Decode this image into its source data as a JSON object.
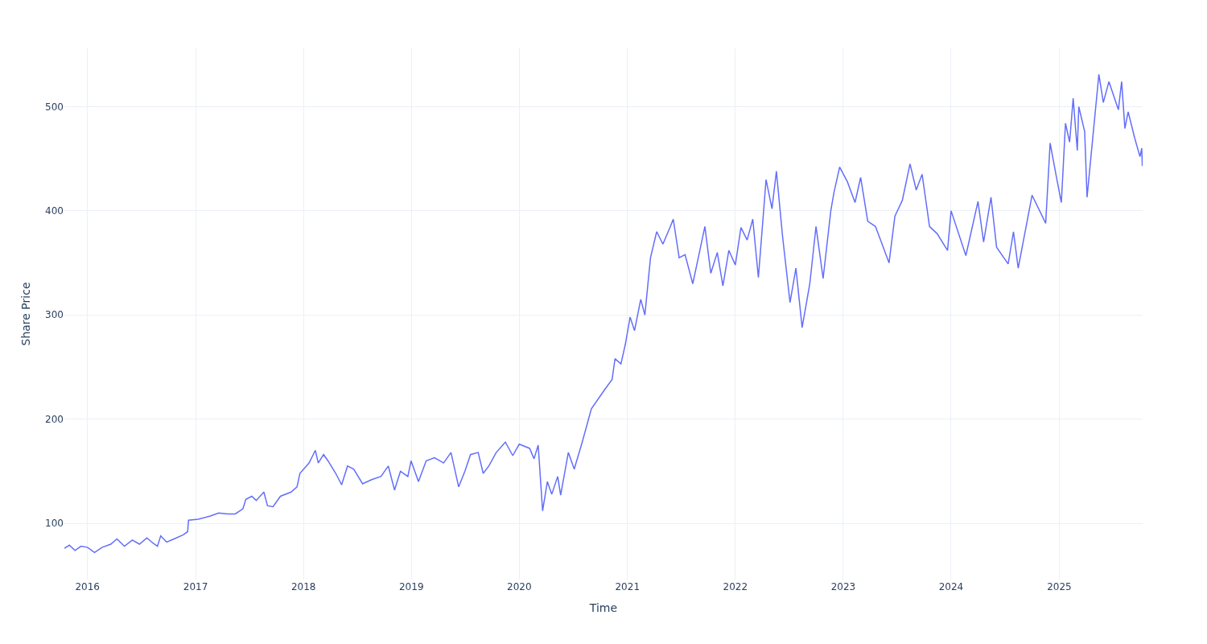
{
  "chart_data": {
    "type": "line",
    "xlabel": "Time",
    "ylabel": "Share Price",
    "x": [
      "2015-10-15",
      "2015-11-01",
      "2015-11-20",
      "2015-12-10",
      "2016-01-01",
      "2016-01-25",
      "2016-02-20",
      "2016-03-20",
      "2016-04-10",
      "2016-05-05",
      "2016-06-01",
      "2016-06-25",
      "2016-07-20",
      "2016-08-10",
      "2016-08-25",
      "2016-09-05",
      "2016-09-25",
      "2016-10-20",
      "2016-11-20",
      "2016-12-05",
      "2016-12-08",
      "2017-01-10",
      "2017-02-20",
      "2017-03-20",
      "2017-04-20",
      "2017-05-15",
      "2017-06-10",
      "2017-06-20",
      "2017-07-10",
      "2017-07-25",
      "2017-08-20",
      "2017-09-01",
      "2017-09-20",
      "2017-10-15",
      "2017-11-20",
      "2017-12-10",
      "2017-12-20",
      "2018-01-20",
      "2018-02-10",
      "2018-02-20",
      "2018-03-10",
      "2018-03-25",
      "2018-04-20",
      "2018-05-10",
      "2018-05-30",
      "2018-06-20",
      "2018-07-20",
      "2018-08-20",
      "2018-09-20",
      "2018-10-15",
      "2018-11-05",
      "2018-11-25",
      "2018-12-20",
      "2018-12-31",
      "2019-01-25",
      "2019-02-20",
      "2019-03-20",
      "2019-04-20",
      "2019-05-15",
      "2019-06-10",
      "2019-07-01",
      "2019-07-20",
      "2019-08-15",
      "2019-09-01",
      "2019-09-20",
      "2019-10-15",
      "2019-11-15",
      "2019-12-10",
      "2020-01-01",
      "2020-02-05",
      "2020-02-20",
      "2020-03-05",
      "2020-03-20",
      "2020-04-05",
      "2020-04-20",
      "2020-05-10",
      "2020-05-20",
      "2020-06-15",
      "2020-07-05",
      "2020-08-01",
      "2020-09-01",
      "2020-10-15",
      "2020-11-10",
      "2020-11-20",
      "2020-12-10",
      "2020-12-25",
      "2021-01-10",
      "2021-01-25",
      "2021-02-15",
      "2021-03-01",
      "2021-03-20",
      "2021-04-10",
      "2021-05-01",
      "2021-05-25",
      "2021-06-05",
      "2021-06-25",
      "2021-07-15",
      "2021-08-10",
      "2021-08-25",
      "2021-09-20",
      "2021-10-10",
      "2021-11-01",
      "2021-11-20",
      "2021-12-10",
      "2022-01-01",
      "2022-01-20",
      "2022-02-10",
      "2022-03-01",
      "2022-03-20",
      "2022-04-15",
      "2022-05-05",
      "2022-05-20",
      "2022-06-10",
      "2022-07-05",
      "2022-07-25",
      "2022-08-15",
      "2022-09-10",
      "2022-10-01",
      "2022-10-25",
      "2022-11-20",
      "2022-12-01",
      "2022-12-20",
      "2023-01-15",
      "2023-02-10",
      "2023-03-01",
      "2023-03-25",
      "2023-04-20",
      "2023-05-10",
      "2023-06-05",
      "2023-06-25",
      "2023-07-20",
      "2023-08-15",
      "2023-09-05",
      "2023-09-25",
      "2023-10-20",
      "2023-11-15",
      "2023-12-20",
      "2024-01-01",
      "2024-02-20",
      "2024-04-01",
      "2024-04-20",
      "2024-05-15",
      "2024-06-03",
      "2024-07-12",
      "2024-07-30",
      "2024-08-15",
      "2024-10-01",
      "2024-11-16",
      "2024-12-01",
      "2024-12-24",
      "2025-01-08",
      "2025-01-22",
      "2025-02-05",
      "2025-02-17",
      "2025-03-03",
      "2025-03-08",
      "2025-03-28",
      "2025-04-05",
      "2025-04-28",
      "2025-05-15",
      "2025-05-30",
      "2025-06-18",
      "2025-07-20",
      "2025-07-31",
      "2025-08-11",
      "2025-08-22",
      "2025-09-13",
      "2025-10-01",
      "2025-10-07",
      "2025-10-09"
    ],
    "values": [
      76,
      79,
      74,
      78,
      77,
      72,
      77,
      80,
      85,
      78,
      84,
      80,
      86,
      81,
      78,
      88,
      82,
      85,
      89,
      92,
      103,
      104,
      107,
      110,
      109,
      109,
      114,
      123,
      126,
      122,
      130,
      117,
      116,
      126,
      130,
      135,
      148,
      158,
      170,
      158,
      166,
      160,
      148,
      137,
      155,
      152,
      138,
      142,
      145,
      155,
      132,
      150,
      145,
      160,
      140,
      160,
      163,
      158,
      168,
      135,
      150,
      166,
      168,
      148,
      155,
      168,
      178,
      165,
      176,
      172,
      162,
      175,
      112,
      140,
      128,
      145,
      127,
      168,
      152,
      178,
      210,
      228,
      238,
      258,
      253,
      272,
      298,
      285,
      315,
      300,
      355,
      380,
      368,
      384,
      392,
      355,
      358,
      330,
      350,
      385,
      340,
      360,
      328,
      362,
      348,
      384,
      372,
      392,
      336,
      430,
      402,
      438,
      375,
      312,
      345,
      288,
      330,
      385,
      335,
      400,
      418,
      442,
      428,
      408,
      432,
      390,
      385,
      370,
      350,
      395,
      410,
      445,
      420,
      435,
      385,
      378,
      362,
      400,
      357,
      409,
      370,
      413,
      365,
      349,
      380,
      345,
      415,
      388,
      465,
      430,
      408,
      484,
      466,
      508,
      458,
      500,
      476,
      413,
      481,
      531,
      504,
      524,
      497,
      524,
      479,
      495,
      470,
      452,
      460,
      443
    ],
    "color": "#636efa",
    "xlim": [
      "2015-10-15",
      "2025-10-10"
    ],
    "ylim": [
      46,
      556
    ],
    "xticks": [
      "2016",
      "2017",
      "2018",
      "2019",
      "2020",
      "2021",
      "2022",
      "2023",
      "2024",
      "2025"
    ],
    "yticks": [
      100,
      200,
      300,
      400,
      500
    ],
    "grid": true
  }
}
